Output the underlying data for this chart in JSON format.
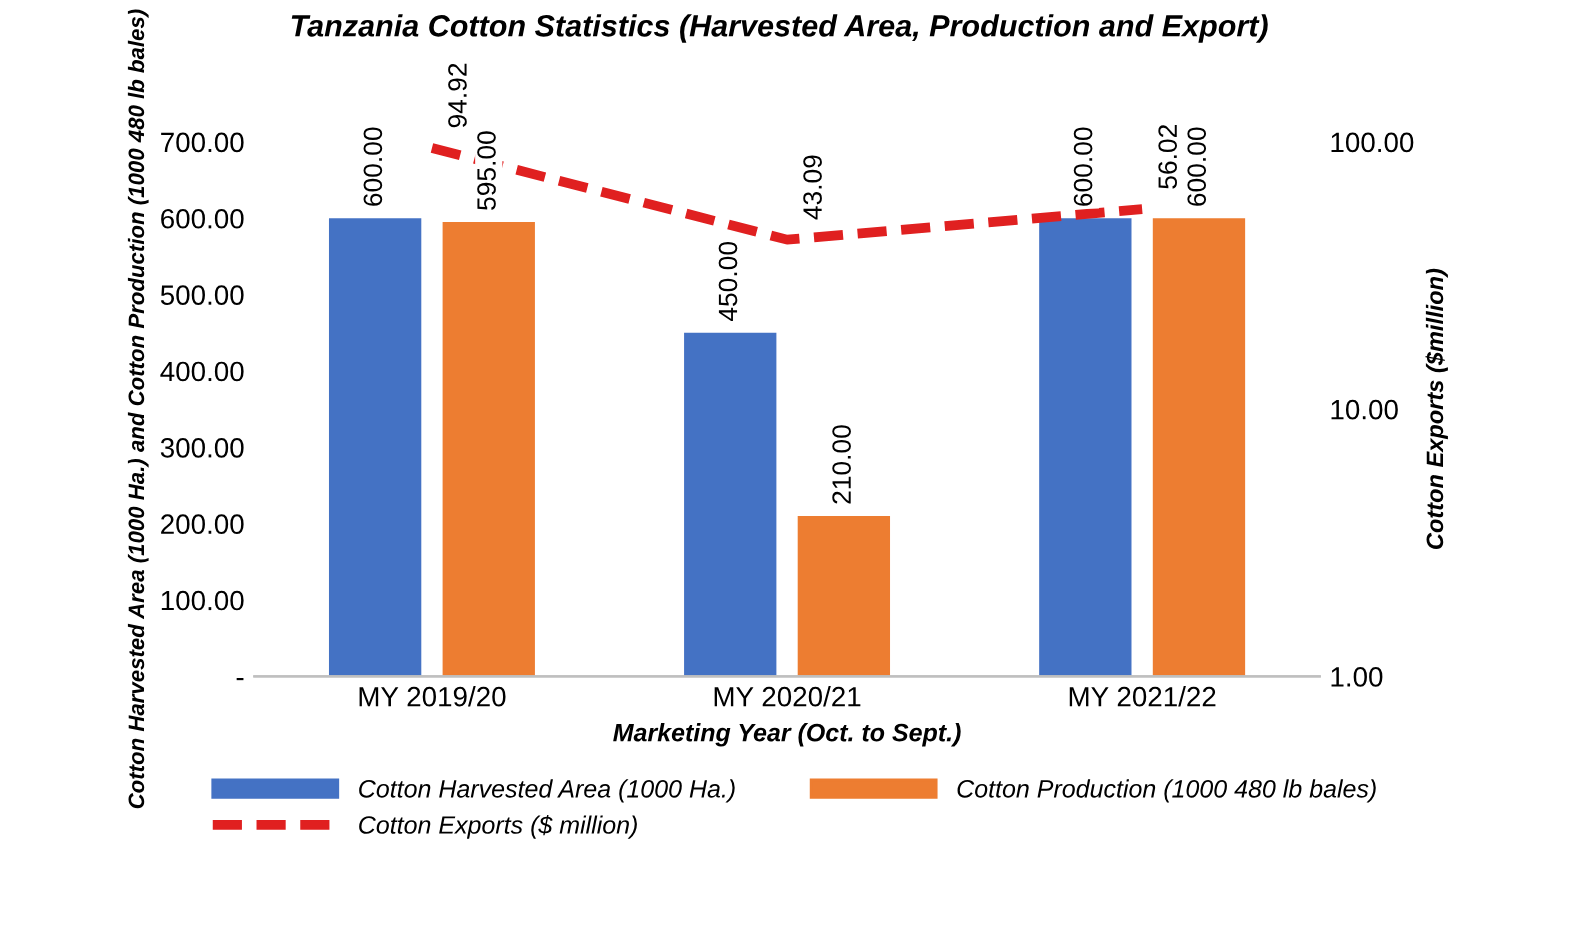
{
  "chart_data": {
    "type": "bar",
    "title": "Tanzania Cotton Statistics (Harvested Area, Production and Export)",
    "xlabel": "Marketing Year (Oct. to Sept.)",
    "ylabel": "Cotton Harvested Area (1000 Ha.) and Cotton Production (1000 480 lb bales)",
    "y2label": "Cotton Exports ($million)",
    "categories": [
      "MY 2019/20",
      "MY 2020/21",
      "MY 2021/22"
    ],
    "series": [
      {
        "name": "Cotton Harvested Area (1000 Ha.)",
        "color": "#4472c4",
        "values": [
          600,
          450,
          600
        ],
        "value_labels": [
          "600.00",
          "450.00",
          "600.00"
        ]
      },
      {
        "name": "Cotton Production (1000 480 lb bales)",
        "color": "#ed7d31",
        "values": [
          595,
          210,
          600
        ],
        "value_labels": [
          "595.00",
          "210.00",
          "600.00"
        ]
      },
      {
        "name": "Cotton Exports ($ million)",
        "type": "line",
        "axis": "y2",
        "color": "#e02020",
        "line_style": "dashed",
        "values": [
          94.92,
          43.09,
          56.02
        ],
        "value_labels": [
          "94.92",
          "43.09",
          "56.02"
        ]
      }
    ],
    "ylim": [
      0,
      700
    ],
    "yticks": [
      {
        "value": 0,
        "label": "-"
      },
      {
        "value": 100,
        "label": "100.00"
      },
      {
        "value": 200,
        "label": "200.00"
      },
      {
        "value": 300,
        "label": "300.00"
      },
      {
        "value": 400,
        "label": "400.00"
      },
      {
        "value": 500,
        "label": "500.00"
      },
      {
        "value": 600,
        "label": "600.00"
      },
      {
        "value": 700,
        "label": "700.00"
      }
    ],
    "y2lim": [
      1,
      100
    ],
    "y2ticks": [
      {
        "value": 1,
        "label": "1.00"
      },
      {
        "value": 10,
        "label": "10.00"
      },
      {
        "value": 100,
        "label": "100.00"
      }
    ],
    "log": "y2",
    "grid": false,
    "legend": "bottom"
  }
}
